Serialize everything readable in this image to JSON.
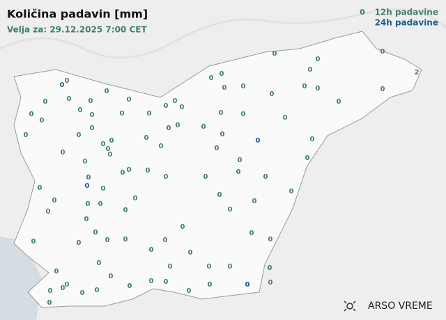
{
  "chart_data": {
    "type": "map",
    "title": "Količina padavin [mm]",
    "subtitle": "Velja za: 29.12.2025 7:00 CET",
    "brand": "ARSO VREME",
    "series": [
      {
        "name": "12h padavine",
        "color": "#3f8464",
        "symbol": "0",
        "values": [
          0,
          0,
          0,
          0,
          0,
          0,
          2,
          0,
          0,
          0,
          0,
          0,
          0,
          0,
          0,
          0,
          0,
          0,
          0,
          0,
          0,
          0,
          0,
          0,
          0,
          0,
          0,
          0,
          0,
          0,
          0,
          0,
          0,
          0,
          0,
          0,
          0,
          0,
          0,
          0,
          0,
          0,
          0,
          0,
          0,
          0,
          0,
          0,
          0,
          0,
          0,
          0,
          0,
          0,
          0,
          0,
          0,
          0,
          0,
          0,
          0,
          0,
          0,
          0,
          0,
          0,
          0,
          0,
          0,
          0,
          0,
          0,
          0,
          0,
          0,
          0,
          0,
          0,
          0,
          0,
          0,
          0,
          0,
          0,
          0,
          0,
          0,
          0,
          0,
          0,
          0,
          0,
          0,
          0,
          0,
          0,
          0,
          0,
          0,
          0,
          0,
          0
        ]
      },
      {
        "name": "24h padavine",
        "color": "#1f5f8f",
        "values": [
          0,
          0,
          0,
          0
        ]
      }
    ]
  }
}
